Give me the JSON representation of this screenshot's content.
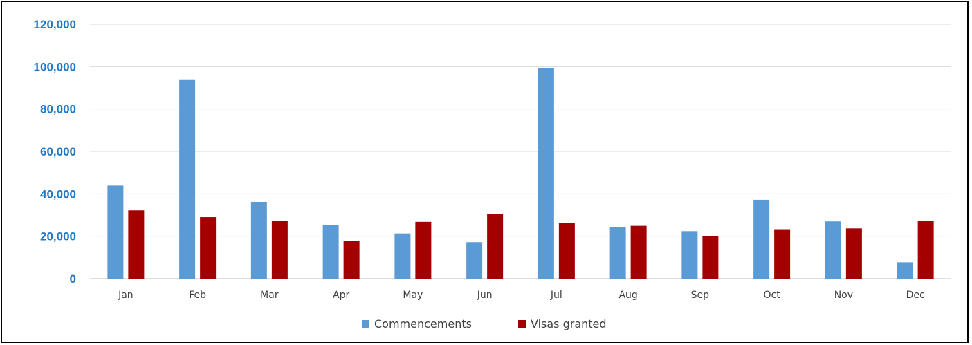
{
  "chart_data": {
    "type": "bar",
    "title": "",
    "xlabel": "",
    "ylabel": "",
    "categories": [
      "Jan",
      "Feb",
      "Mar",
      "Apr",
      "May",
      "Jun",
      "Jul",
      "Aug",
      "Sep",
      "Oct",
      "Nov",
      "Dec"
    ],
    "series": [
      {
        "name": "Commencements",
        "color": "#5b9bd5",
        "values": [
          43900,
          94000,
          36200,
          25400,
          21300,
          17200,
          99200,
          24300,
          22400,
          37200,
          27000,
          7700
        ]
      },
      {
        "name": "Visas granted",
        "color": "#a50000",
        "values": [
          32200,
          29000,
          27400,
          17700,
          26800,
          30400,
          26300,
          24900,
          20100,
          23300,
          23700,
          27400
        ]
      }
    ],
    "ylim": [
      0,
      120000
    ],
    "yticks": [
      0,
      20000,
      40000,
      60000,
      80000,
      100000,
      120000
    ],
    "ytick_labels": [
      "0",
      "20,000",
      "40,000",
      "60,000",
      "80,000",
      "100,000",
      "120,000"
    ],
    "ytick_color": "#1f78c8",
    "grid": true,
    "legend_position": "bottom"
  }
}
